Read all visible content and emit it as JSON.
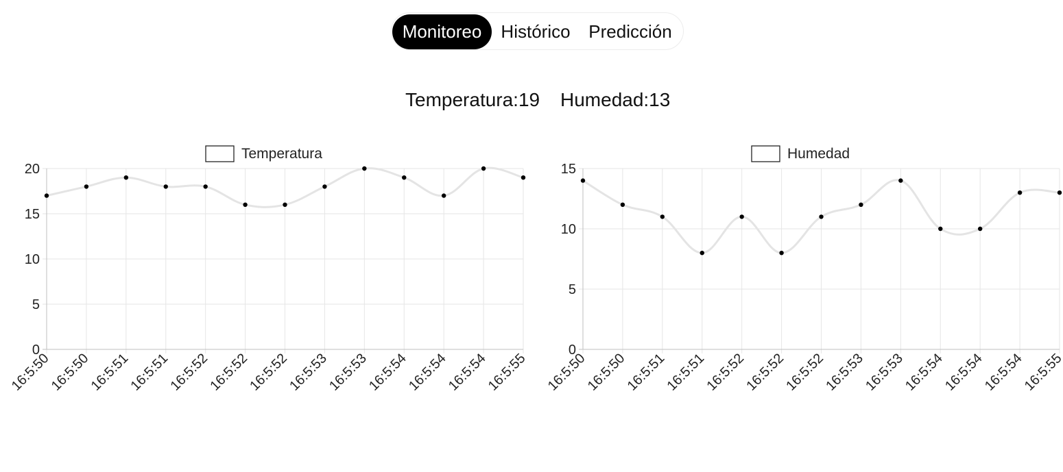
{
  "nav": {
    "tabs": [
      {
        "label": "Monitoreo",
        "active": true
      },
      {
        "label": "Histórico",
        "active": false
      },
      {
        "label": "Predicción",
        "active": false
      }
    ]
  },
  "readings": {
    "temperatura": "Temperatura:19",
    "humedad": "Humedad:13"
  },
  "colors": {
    "line": "#e4e4e4",
    "point": "#000000",
    "grid": "#e6e6e6",
    "axis": "#bfbfbf",
    "active_tab_bg": "#000000"
  },
  "chart_data": [
    {
      "type": "line",
      "legend": "Temperatura",
      "legend_position": "top",
      "x": [
        "16:5:50",
        "16:5:50",
        "16:5:51",
        "16:5:51",
        "16:5:52",
        "16:5:52",
        "16:5:52",
        "16:5:53",
        "16:5:53",
        "16:5:54",
        "16:5:54",
        "16:5:54",
        "16:5:55"
      ],
      "series": [
        {
          "name": "Temperatura",
          "values": [
            17,
            18,
            19,
            18,
            18,
            16,
            16,
            18,
            20,
            19,
            17,
            20,
            19
          ]
        }
      ],
      "ylim": [
        0,
        20
      ],
      "yticks": [
        0,
        5,
        10,
        15,
        20
      ],
      "grid": true
    },
    {
      "type": "line",
      "legend": "Humedad",
      "legend_position": "top",
      "x": [
        "16:5:50",
        "16:5:50",
        "16:5:51",
        "16:5:51",
        "16:5:52",
        "16:5:52",
        "16:5:52",
        "16:5:53",
        "16:5:53",
        "16:5:54",
        "16:5:54",
        "16:5:54",
        "16:5:55"
      ],
      "series": [
        {
          "name": "Humedad",
          "values": [
            14,
            12,
            11,
            8,
            11,
            8,
            11,
            12,
            14,
            10,
            10,
            13,
            13
          ]
        }
      ],
      "ylim": [
        0,
        15
      ],
      "yticks": [
        0,
        5,
        10,
        15
      ],
      "grid": true
    }
  ]
}
